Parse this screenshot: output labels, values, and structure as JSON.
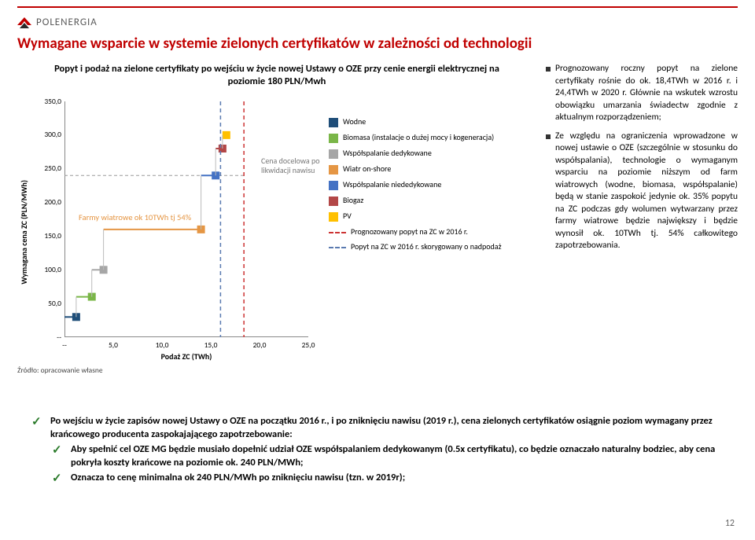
{
  "brand": {
    "name": "POLENERGIA",
    "accent": "#c00000"
  },
  "title": "Wymagane wsparcie w systemie zielonych certyfikatów w zależności od technologii",
  "chart": {
    "title": "Popyt i podaż na zielone certyfikaty po wejściu w życie nowej Ustawy o OZE przy cenie energii elektrycznej na poziomie 180 PLN/Mwh",
    "y_label": "Wymagana cena ZC (PLN/MWh)",
    "x_label": "Podaż ZC (TWh)",
    "xlim": [
      0,
      25
    ],
    "ylim": [
      0,
      350
    ],
    "xticks": [
      "--",
      "5,0",
      "10,0",
      "15,0",
      "20,0",
      "25,0"
    ],
    "yticks": [
      "--",
      "50,0",
      "100,0",
      "150,0",
      "200,0",
      "250,0",
      "300,0",
      "350,0"
    ],
    "source": "Źródło: opracowanie własne",
    "annot_target": "Cena docelowa po likwidacji nawisu",
    "annot_farm": "Farmy wiatrowe ok 10TWh tj 54%",
    "demand_2016_x": 18.4,
    "demand_2016_corr_x": 16.0,
    "target_price_y": 240,
    "series": [
      {
        "name": "Wodne",
        "color": "#1f4e79",
        "x0": 0.0,
        "x1": 1.2,
        "y": 30
      },
      {
        "name": "Biomasa (instalacje o dużej mocy i kogeneracja)",
        "color": "#7ab648",
        "x0": 1.2,
        "x1": 2.8,
        "y": 60
      },
      {
        "name": "Współspalanie dedykowane",
        "color": "#a6a6a6",
        "x0": 2.8,
        "x1": 4.0,
        "y": 100
      },
      {
        "name": "Wiatr on-shore",
        "color": "#e59644",
        "x0": 4.0,
        "x1": 14.0,
        "y": 160
      },
      {
        "name": "Współspalanie niededykowane",
        "color": "#4472c4",
        "x0": 14.0,
        "x1": 15.5,
        "y": 240
      },
      {
        "name": "Biogaz",
        "color": "#b34747",
        "x0": 15.5,
        "x1": 16.2,
        "y": 280
      },
      {
        "name": "PV",
        "color": "#ffc000",
        "x0": 16.2,
        "x1": 16.6,
        "y": 300
      }
    ],
    "legend": [
      {
        "type": "sq",
        "label": "Wodne",
        "color": "#1f4e79"
      },
      {
        "type": "sq",
        "label": "Biomasa (instalacje o dużej mocy i kogeneracja)",
        "color": "#7ab648"
      },
      {
        "type": "sq",
        "label": "Współspalanie dedykowane",
        "color": "#a6a6a6"
      },
      {
        "type": "sq",
        "label": "Wiatr on-shore",
        "color": "#e59644"
      },
      {
        "type": "sq",
        "label": "Współspalanie niededykowane",
        "color": "#4472c4"
      },
      {
        "type": "sq",
        "label": "Biogaz",
        "color": "#b34747"
      },
      {
        "type": "sq",
        "label": "PV",
        "color": "#ffc000"
      },
      {
        "type": "dash",
        "label": "Prognozowany popyt na ZC w 2016 r.",
        "color": "#cc3333"
      },
      {
        "type": "dash",
        "label": "Popyt na ZC w 2016 r. skorygowany o nadpodaż",
        "color": "#5a7ab0"
      }
    ]
  },
  "side_bullets": [
    "Prognozowany roczny popyt na zielone certyfikaty rośnie do ok. 18,4TWh w 2016 r. i 24,4TWh w 2020 r. Głównie na wskutek wzrostu obowiązku umarzania świadectw zgodnie z aktualnym rozporządzeniem;",
    "Ze względu na ograniczenia wprowadzone w nowej ustawie o OZE (szczególnie w stosunku do współspalania), technologie o wymaganym wsparciu na poziomie niższym od farm wiatrowych (wodne, biomasa, współspalanie) będą w stanie zaspokoić jedynie ok. 35% popytu na ZC podczas gdy wolumen wytwarzany przez farmy wiatrowe będzie największy i będzie wynosił ok. 10TWh tj. 54% całkowitego zapotrzebowania."
  ],
  "bottom": {
    "main": "Po wejściu w życie zapisów nowej Ustawy o OZE na początku 2016 r., i po zniknięciu nawisu (2019 r.), cena zielonych certyfikatów osiągnie poziom wymagany przez krańcowego producenta zaspokajającego zapotrzebowanie:",
    "sub1": "Aby spełnić cel OZE MG będzie musiało dopełnić udział OZE współspalaniem dedykowanym (0.5x certyfikatu), co będzie oznaczało naturalny bodziec, aby cena pokryła koszty krańcowe na poziomie ok. 240 PLN/MWh;",
    "sub2": "Oznacza to cenę minimalna ok 240 PLN/MWh po zniknięciu nawisu (tzn. w 2019r);"
  },
  "page_num": "12"
}
